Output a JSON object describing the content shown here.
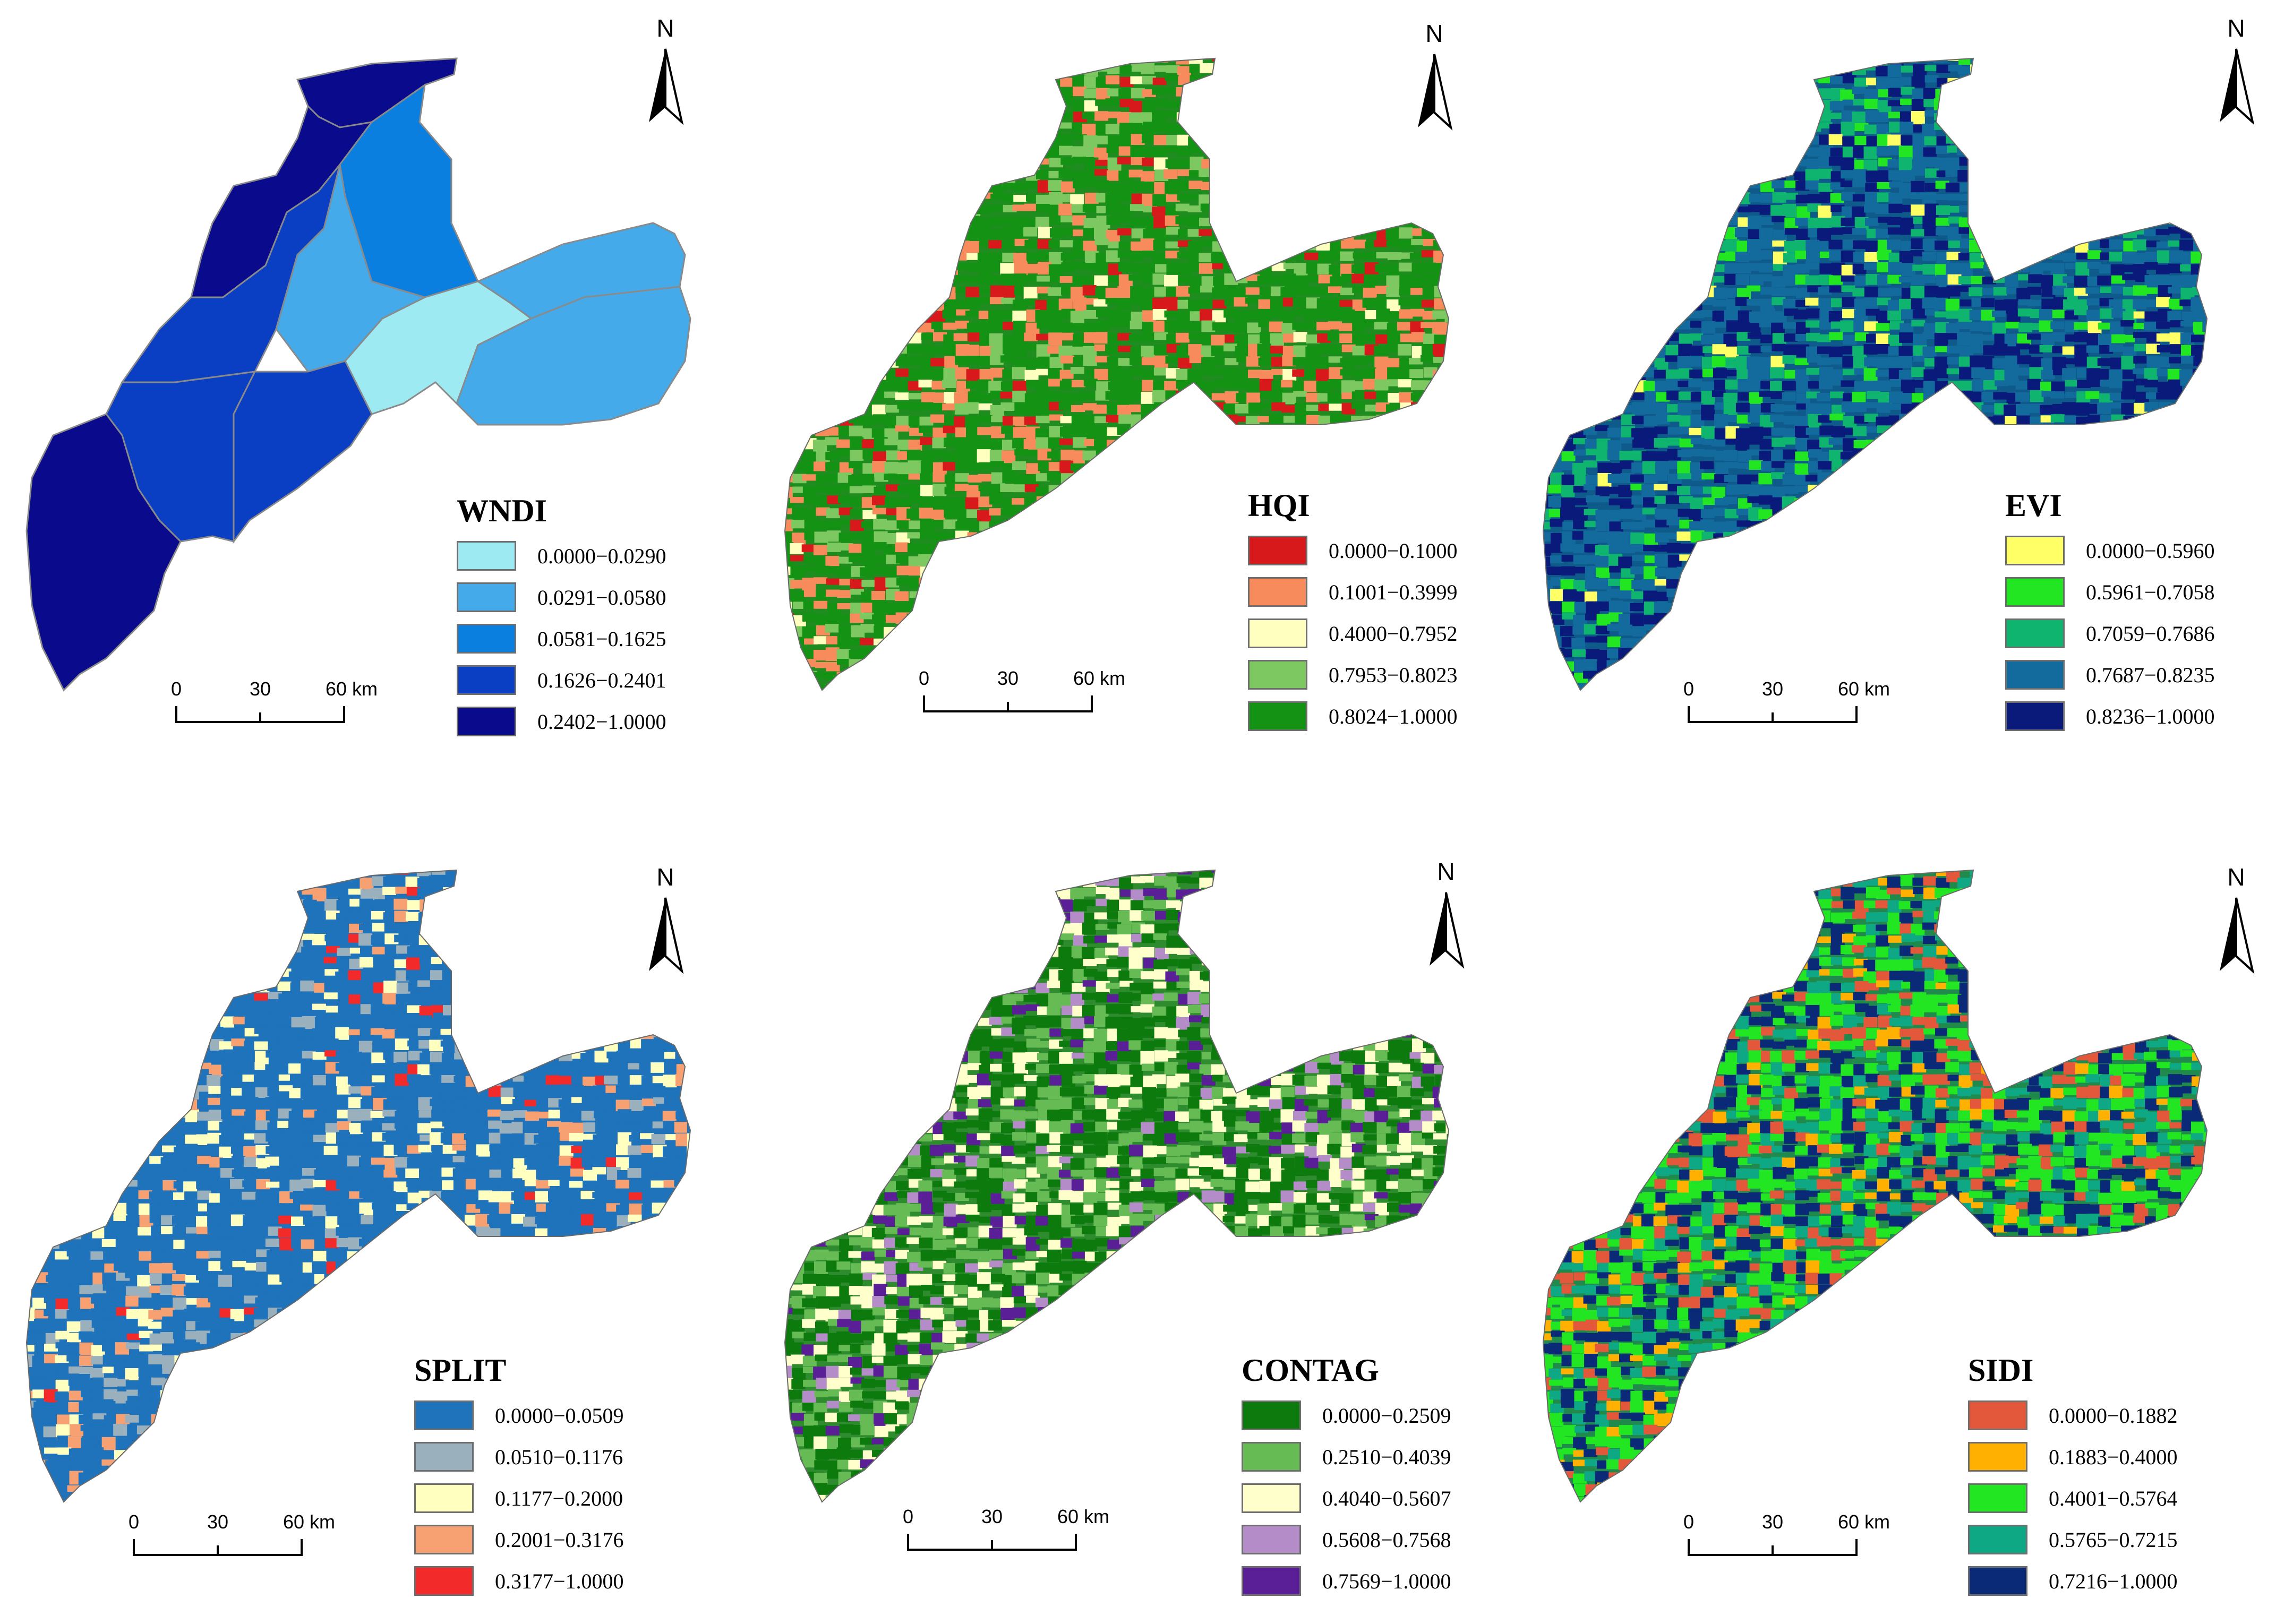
{
  "north_label": "N",
  "scale": {
    "ticks": [
      "0",
      "30",
      "60 km"
    ]
  },
  "panels": [
    {
      "id": "wndi",
      "title": "WNDI",
      "style": "zones",
      "zone_colors": [
        "#0a0a8c",
        "#0a0a8c",
        "#0a3fc4",
        "#0a3fc4",
        "#0b7fe0",
        "#44aaea",
        "#9eeaf2",
        "#44aaea",
        "#44aaea",
        "#0a3fc4",
        "#0a0a8c"
      ],
      "legend": [
        {
          "label": "0.0000−0.0290",
          "color": "#9eeaf2"
        },
        {
          "label": "0.0291−0.0580",
          "color": "#44aaea"
        },
        {
          "label": "0.0581−0.1625",
          "color": "#0b7fe0"
        },
        {
          "label": "0.1626−0.2401",
          "color": "#0a3fc4"
        },
        {
          "label": "0.2402−1.0000",
          "color": "#0a0a8c"
        }
      ]
    },
    {
      "id": "hqi",
      "title": "HQI",
      "style": "raster",
      "base_color": "#1e8c1e",
      "weights": [
        0.08,
        0.22,
        0.04,
        0.18,
        0.48
      ],
      "legend": [
        {
          "label": "0.0000−0.1000",
          "color": "#d7191c"
        },
        {
          "label": "0.1001−0.3999",
          "color": "#f88b5c"
        },
        {
          "label": "0.4000−0.7952",
          "color": "#ffffc0"
        },
        {
          "label": "0.7953−0.8023",
          "color": "#7dc860"
        },
        {
          "label": "0.8024−1.0000",
          "color": "#149214"
        }
      ]
    },
    {
      "id": "evi",
      "title": "EVI",
      "style": "raster",
      "base_color": "#0e5a8a",
      "weights": [
        0.04,
        0.08,
        0.18,
        0.4,
        0.3
      ],
      "legend": [
        {
          "label": "0.0000−0.5960",
          "color": "#ffff66"
        },
        {
          "label": "0.5961−0.7058",
          "color": "#22e622"
        },
        {
          "label": "0.7059−0.7686",
          "color": "#0fb46e"
        },
        {
          "label": "0.7687−0.8235",
          "color": "#136a9c"
        },
        {
          "label": "0.8236−1.0000",
          "color": "#0a1a7a"
        }
      ]
    },
    {
      "id": "split",
      "title": "SPLIT",
      "style": "raster",
      "base_color": "#1f73bb",
      "weights": [
        0.62,
        0.12,
        0.14,
        0.09,
        0.03
      ],
      "legend": [
        {
          "label": "0.0000−0.0509",
          "color": "#1f73bb"
        },
        {
          "label": "0.0510−0.1176",
          "color": "#9bb0bd"
        },
        {
          "label": "0.1177−0.2000",
          "color": "#ffffc0"
        },
        {
          "label": "0.2001−0.3176",
          "color": "#f7a072"
        },
        {
          "label": "0.3177−1.0000",
          "color": "#f22a2a"
        }
      ]
    },
    {
      "id": "contag",
      "title": "CONTAG",
      "style": "raster",
      "base_color": "#2e8c2e",
      "weights": [
        0.38,
        0.22,
        0.24,
        0.06,
        0.1
      ],
      "legend": [
        {
          "label": "0.0000−0.2509",
          "color": "#0c7a0c"
        },
        {
          "label": "0.2510−0.4039",
          "color": "#66bb55"
        },
        {
          "label": "0.4040−0.5607",
          "color": "#ffffcc"
        },
        {
          "label": "0.5608−0.7568",
          "color": "#b48cc8"
        },
        {
          "label": "0.7569−1.0000",
          "color": "#5a1e96"
        }
      ]
    },
    {
      "id": "sidi",
      "title": "SIDI",
      "style": "raster",
      "base_color": "#1f8a4c",
      "weights": [
        0.16,
        0.1,
        0.3,
        0.2,
        0.24
      ],
      "legend": [
        {
          "label": "0.0000−0.1882",
          "color": "#e3583a"
        },
        {
          "label": "0.1883−0.4000",
          "color": "#ffb000"
        },
        {
          "label": "0.4001−0.5764",
          "color": "#22e622"
        },
        {
          "label": "0.5765−0.7215",
          "color": "#0fa884"
        },
        {
          "label": "0.7216−1.0000",
          "color": "#0a2a78"
        }
      ]
    }
  ]
}
